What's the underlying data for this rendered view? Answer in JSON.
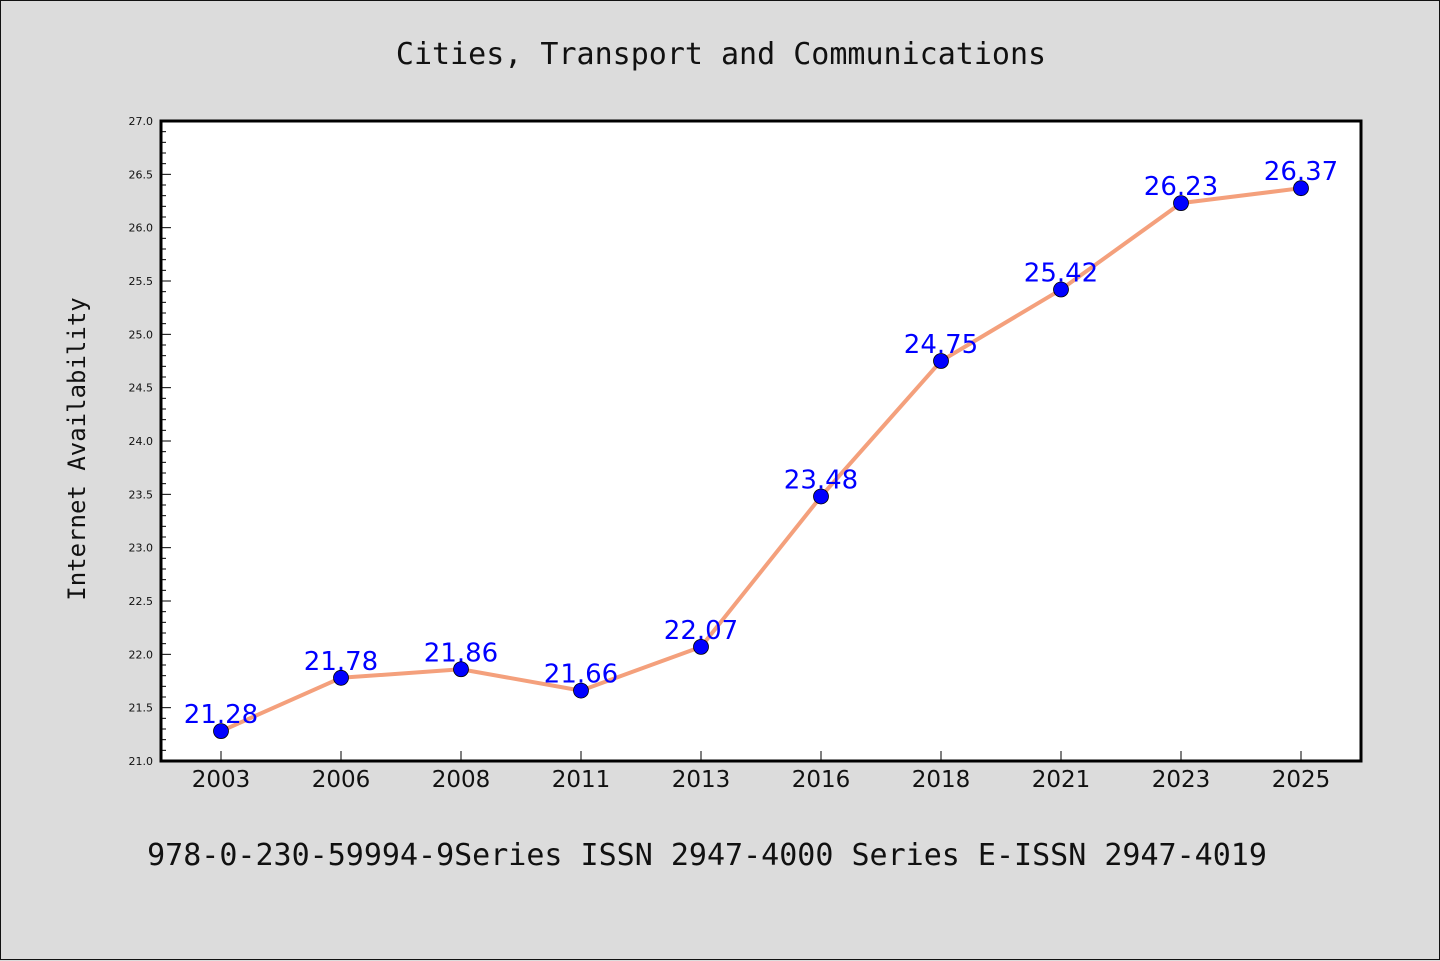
{
  "chart_data": {
    "type": "line",
    "title": "Cities, Transport and Communications",
    "xlabel": "",
    "ylabel": "Internet Availability",
    "categories": [
      "2003",
      "2006",
      "2008",
      "2011",
      "2013",
      "2016",
      "2018",
      "2021",
      "2023",
      "2025"
    ],
    "series": [
      {
        "values": [
          21.28,
          21.78,
          21.86,
          21.66,
          22.07,
          23.48,
          24.75,
          25.42,
          26.23,
          26.37
        ],
        "data_labels": [
          "21.28",
          "21.78",
          "21.86",
          "21.66",
          "22.07",
          "23.48",
          "24.75",
          "25.42",
          "26.23",
          "26.37"
        ],
        "line_color": "#f4a07c",
        "marker_color": "#0000ff"
      }
    ],
    "ylim": [
      21.0,
      27.0
    ],
    "yticks": [
      "21.0",
      "21.5",
      "22.0",
      "22.5",
      "23.0",
      "23.5",
      "24.0",
      "24.5",
      "25.0",
      "25.5",
      "26.0",
      "26.5",
      "27.0"
    ],
    "grid": false,
    "legend": "none"
  },
  "footer": "978-0-230-59994-9Series ISSN 2947-4000 Series E-ISSN 2947-4019",
  "colors": {
    "background": "#dcdcdc",
    "plot_background": "#ffffff",
    "line": "#f4a07c",
    "marker": "#0000ff",
    "data_label": "#0000ff"
  }
}
